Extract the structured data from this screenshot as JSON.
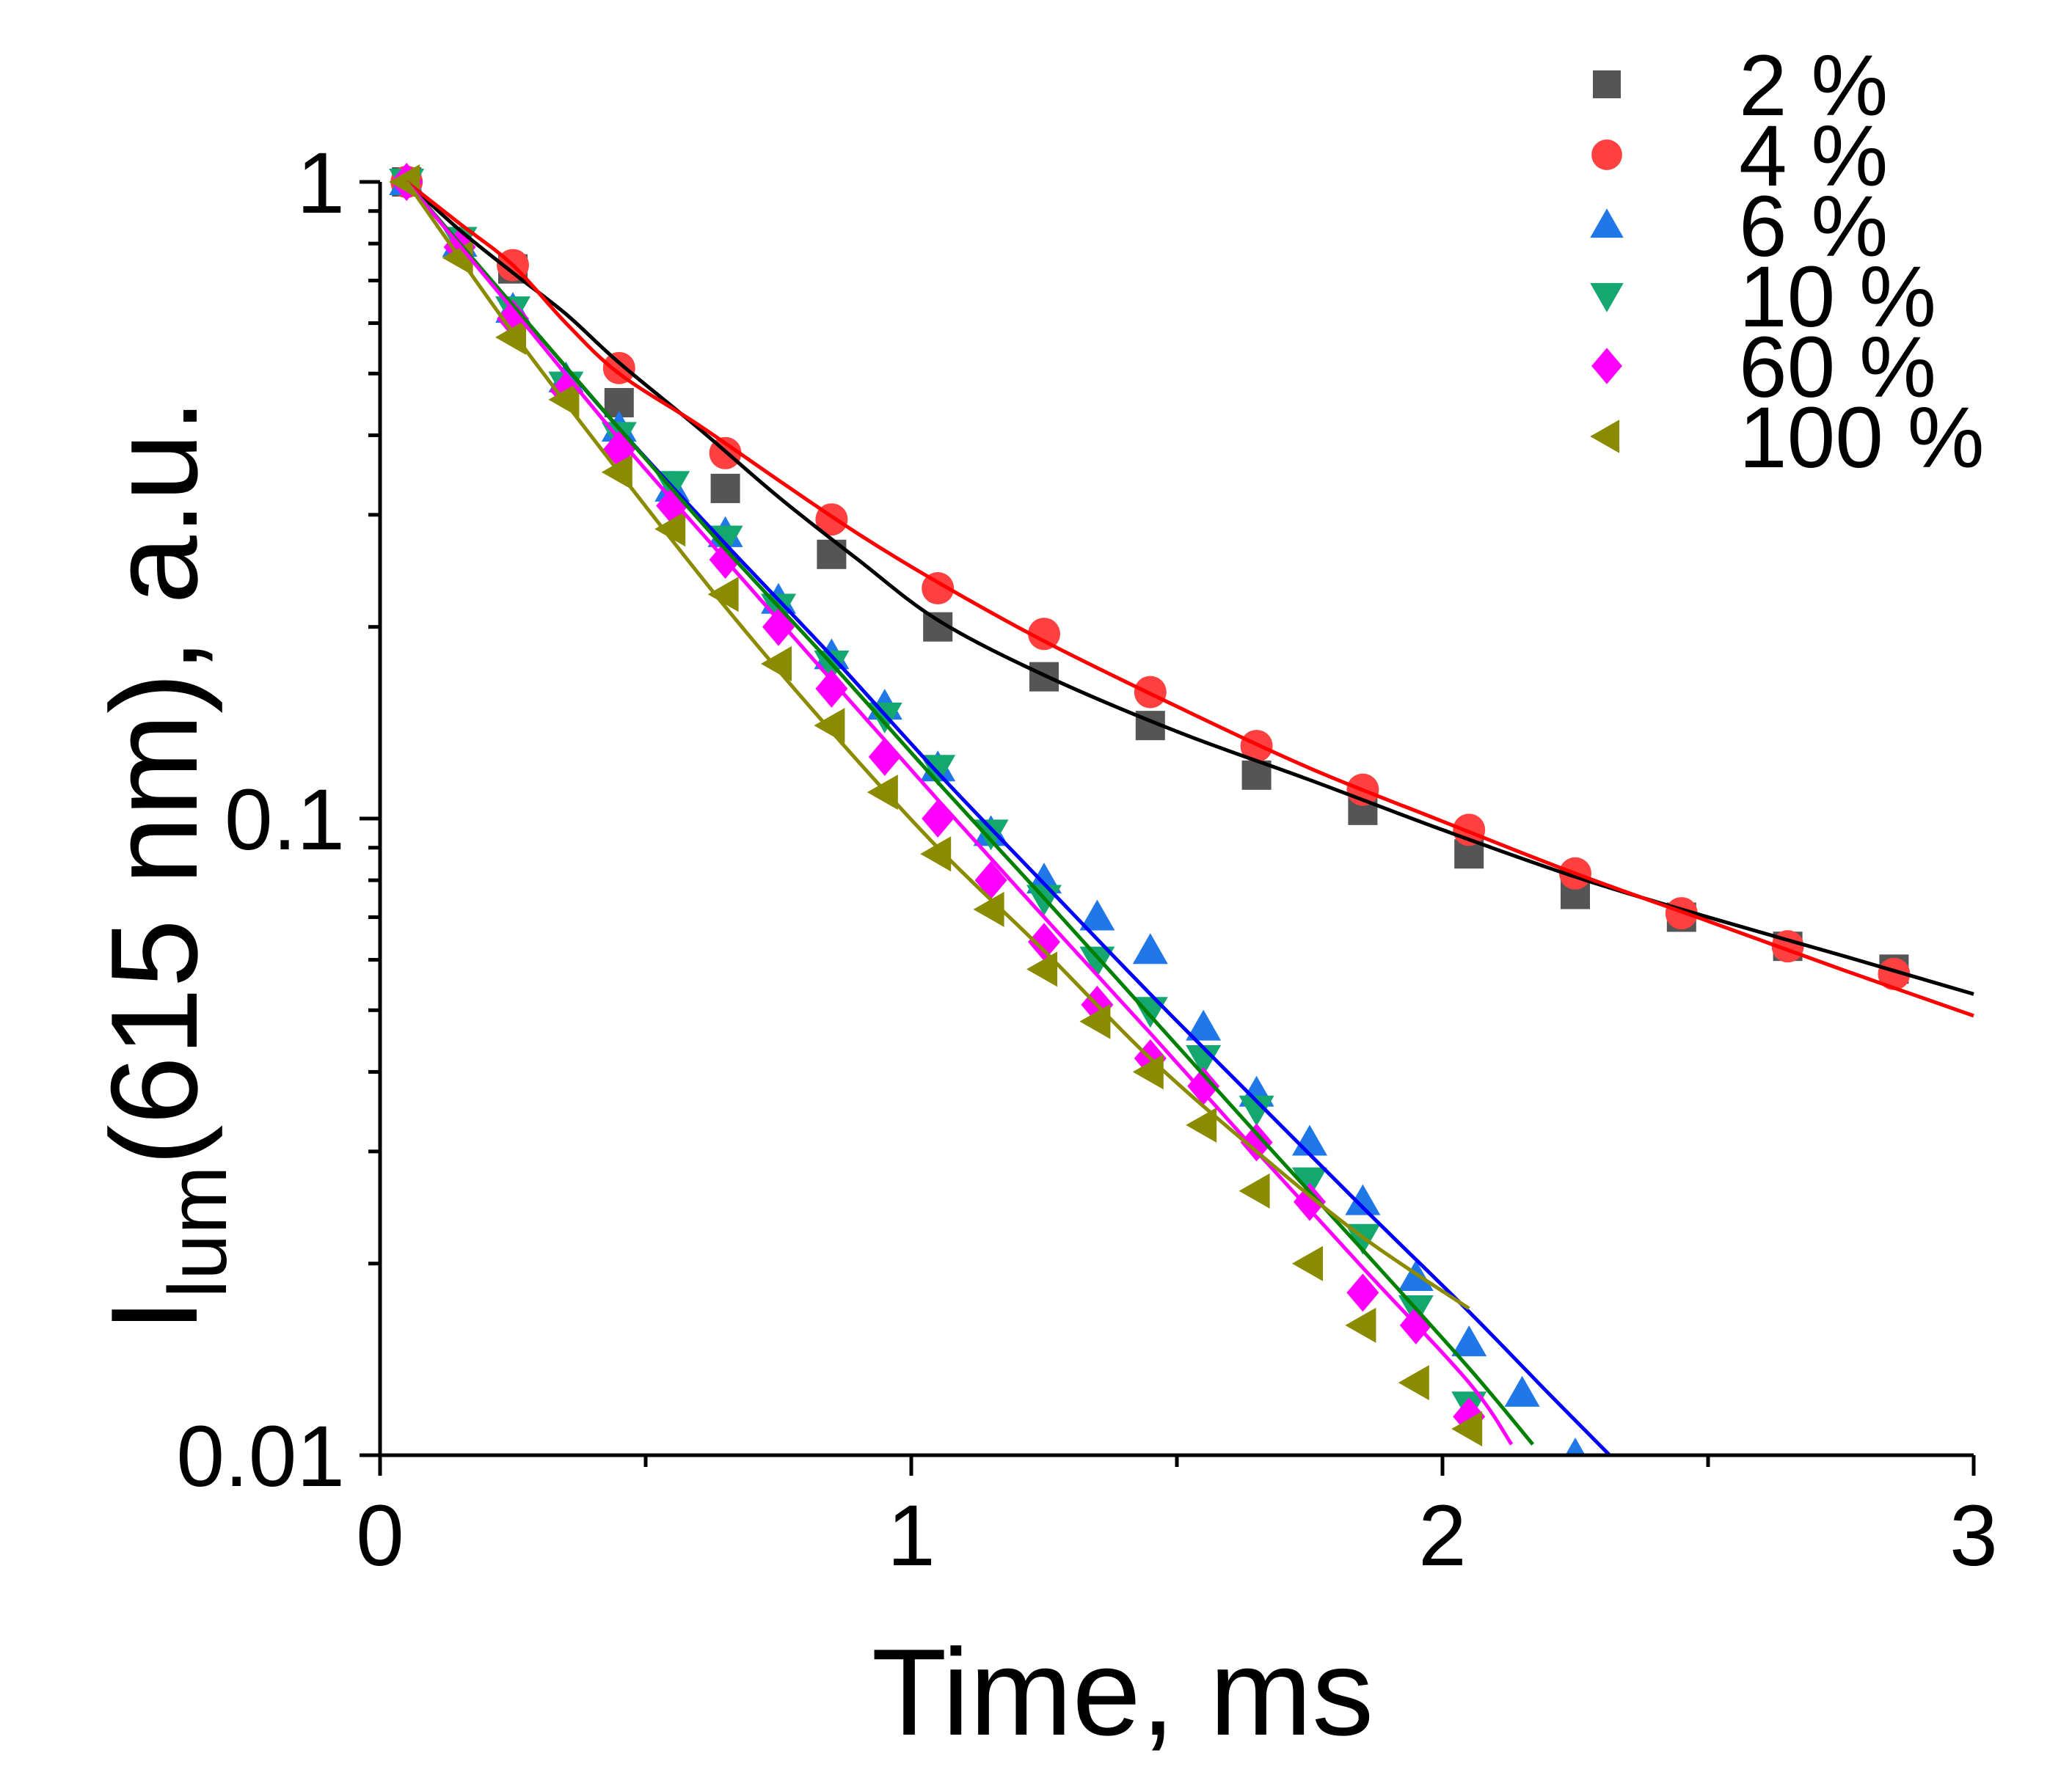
{
  "chart_data": {
    "type": "scatter",
    "title": "",
    "xlabel": "Time, ms",
    "ylabel_main": "I",
    "ylabel_sub": "lum",
    "ylabel_rest": "(615 nm), a.u.",
    "xlim": [
      0,
      3
    ],
    "ylim": [
      0.01,
      1
    ],
    "yscale": "log",
    "x_ticks": [
      0,
      1,
      2,
      3
    ],
    "x_tick_labels": [
      "0",
      "1",
      "2",
      "3"
    ],
    "y_ticks": [
      0.01,
      0.1,
      1
    ],
    "y_tick_labels": [
      "0.01",
      "0.1",
      "1"
    ],
    "legend_position": "top-right",
    "series": [
      {
        "name": "2 %",
        "marker": "square",
        "color": "#555555",
        "fit_color": "#000000",
        "x": [
          0.05,
          0.25,
          0.45,
          0.65,
          0.85,
          1.05,
          1.25,
          1.45,
          1.65,
          1.85,
          2.05,
          2.25,
          2.45,
          2.65,
          2.85
        ],
        "y": [
          1.0,
          0.73,
          0.45,
          0.33,
          0.26,
          0.2,
          0.167,
          0.14,
          0.117,
          0.103,
          0.088,
          0.076,
          0.07,
          0.063,
          0.058
        ],
        "fit_x": [
          0.05,
          0.15,
          0.25,
          0.35,
          0.45,
          0.6,
          0.75,
          0.9,
          1.05,
          1.25,
          1.5,
          1.75,
          2.0,
          2.25,
          2.5,
          2.75,
          3.0
        ],
        "fit_y": [
          1.0,
          0.84,
          0.72,
          0.62,
          0.52,
          0.41,
          0.32,
          0.255,
          0.205,
          0.168,
          0.137,
          0.115,
          0.096,
          0.081,
          0.07,
          0.061,
          0.053
        ]
      },
      {
        "name": "4 %",
        "marker": "circle",
        "color": "#ff4040",
        "fit_color": "#ff0000",
        "x": [
          0.05,
          0.25,
          0.45,
          0.65,
          0.85,
          1.05,
          1.25,
          1.45,
          1.65,
          1.85,
          2.05,
          2.25,
          2.45,
          2.65,
          2.85
        ],
        "y": [
          1.0,
          0.74,
          0.51,
          0.375,
          0.295,
          0.23,
          0.195,
          0.158,
          0.13,
          0.111,
          0.096,
          0.082,
          0.071,
          0.063,
          0.057
        ],
        "fit_x": [
          0.05,
          0.15,
          0.25,
          0.35,
          0.45,
          0.6,
          0.75,
          0.9,
          1.05,
          1.25,
          1.5,
          1.75,
          2.0,
          2.25,
          2.5,
          2.75,
          3.0
        ],
        "fit_y": [
          1.0,
          0.86,
          0.74,
          0.6,
          0.5,
          0.415,
          0.34,
          0.28,
          0.235,
          0.19,
          0.15,
          0.12,
          0.099,
          0.082,
          0.069,
          0.058,
          0.049
        ]
      },
      {
        "name": "6 %",
        "marker": "triangle-up",
        "color": "#1f77e8",
        "fit_color": "#0000ff",
        "x": [
          0.05,
          0.15,
          0.25,
          0.35,
          0.45,
          0.55,
          0.65,
          0.75,
          0.85,
          0.95,
          1.05,
          1.15,
          1.25,
          1.35,
          1.45,
          1.55,
          1.65,
          1.75,
          1.85,
          1.95,
          2.05,
          2.15,
          2.25
        ],
        "y": [
          1.0,
          0.8,
          0.63,
          0.49,
          0.41,
          0.33,
          0.28,
          0.22,
          0.18,
          0.15,
          0.12,
          0.095,
          0.08,
          0.07,
          0.062,
          0.047,
          0.037,
          0.031,
          0.025,
          0.019,
          0.015,
          0.0125,
          0.01
        ],
        "fit_x": [
          0.05,
          0.25,
          0.45,
          0.65,
          0.85,
          1.05,
          1.25,
          1.45,
          1.65,
          1.85,
          2.05,
          2.2,
          2.32
        ],
        "fit_y": [
          1.0,
          0.64,
          0.41,
          0.27,
          0.18,
          0.118,
          0.079,
          0.053,
          0.036,
          0.0245,
          0.0168,
          0.0125,
          0.0099
        ]
      },
      {
        "name": "10 %",
        "marker": "triangle-down",
        "color": "#14a870",
        "fit_color": "#008000",
        "x": [
          0.05,
          0.15,
          0.25,
          0.35,
          0.45,
          0.55,
          0.65,
          0.75,
          0.85,
          0.95,
          1.05,
          1.15,
          1.25,
          1.35,
          1.45,
          1.55,
          1.65,
          1.75,
          1.85,
          1.95,
          2.05
        ],
        "y": [
          1.0,
          0.81,
          0.63,
          0.48,
          0.4,
          0.335,
          0.275,
          0.215,
          0.175,
          0.145,
          0.12,
          0.095,
          0.075,
          0.06,
          0.05,
          0.042,
          0.035,
          0.027,
          0.022,
          0.017,
          0.012
        ],
        "fit_x": [
          0.05,
          0.25,
          0.45,
          0.65,
          0.85,
          1.05,
          1.25,
          1.45,
          1.65,
          1.85,
          2.05,
          2.17
        ],
        "fit_y": [
          1.0,
          0.64,
          0.41,
          0.265,
          0.175,
          0.114,
          0.075,
          0.049,
          0.032,
          0.021,
          0.0137,
          0.0104
        ]
      },
      {
        "name": "60 %",
        "marker": "diamond",
        "color": "#ff00ff",
        "fit_color": "#ff00ff",
        "x": [
          0.05,
          0.15,
          0.25,
          0.35,
          0.45,
          0.55,
          0.65,
          0.75,
          0.85,
          0.95,
          1.05,
          1.15,
          1.25,
          1.35,
          1.45,
          1.55,
          1.65,
          1.75,
          1.85,
          1.95,
          2.05
        ],
        "y": [
          1.0,
          0.79,
          0.61,
          0.47,
          0.38,
          0.31,
          0.255,
          0.2,
          0.16,
          0.125,
          0.1,
          0.08,
          0.064,
          0.051,
          0.042,
          0.038,
          0.031,
          0.025,
          0.018,
          0.016,
          0.0115
        ],
        "fit_x": [
          0.05,
          0.25,
          0.45,
          0.65,
          0.85,
          1.05,
          1.25,
          1.45,
          1.65,
          1.85,
          2.05,
          2.13
        ],
        "fit_y": [
          1.0,
          0.63,
          0.395,
          0.255,
          0.165,
          0.107,
          0.07,
          0.046,
          0.03,
          0.0197,
          0.013,
          0.0104
        ]
      },
      {
        "name": "100 %",
        "marker": "triangle-left",
        "color": "#8b8b00",
        "fit_color": "#8b8b00",
        "x": [
          0.05,
          0.15,
          0.25,
          0.35,
          0.45,
          0.55,
          0.65,
          0.75,
          0.85,
          0.95,
          1.05,
          1.15,
          1.25,
          1.35,
          1.45,
          1.55,
          1.65,
          1.75,
          1.85,
          1.95,
          2.05
        ],
        "y": [
          1.0,
          0.76,
          0.57,
          0.455,
          0.35,
          0.285,
          0.225,
          0.175,
          0.14,
          0.11,
          0.088,
          0.072,
          0.058,
          0.048,
          0.04,
          0.033,
          0.026,
          0.02,
          0.016,
          0.013,
          0.011
        ],
        "fit_x": [
          0.05,
          0.25,
          0.45,
          0.65,
          0.85,
          1.05,
          1.25,
          1.45,
          1.65,
          1.85,
          2.05
        ],
        "fit_y": [
          1.0,
          0.58,
          0.35,
          0.215,
          0.137,
          0.09,
          0.062,
          0.042,
          0.03,
          0.022,
          0.017
        ]
      }
    ]
  }
}
